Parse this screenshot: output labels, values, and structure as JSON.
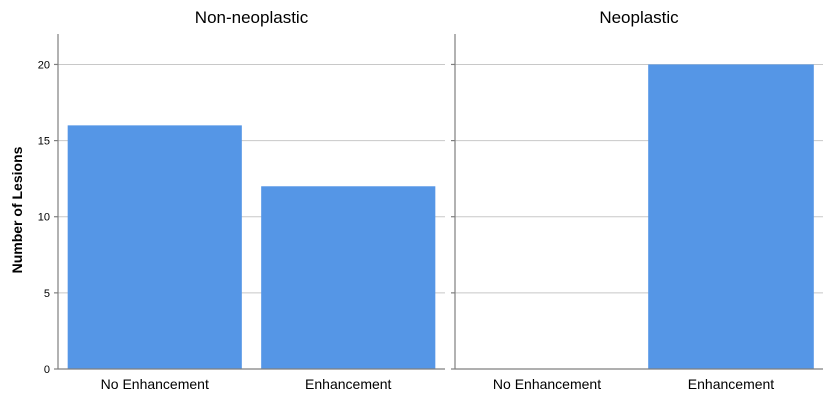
{
  "chart_data": {
    "type": "bar",
    "ylabel": "Number of Lesions",
    "ylim": [
      0,
      22
    ],
    "yticks": [
      0,
      5,
      10,
      15,
      20
    ],
    "grid": true,
    "bar_color": "#5596e6",
    "panels": [
      {
        "title": "Non-neoplastic",
        "categories": [
          "No Enhancement",
          "Enhancement"
        ],
        "values": [
          16,
          12
        ]
      },
      {
        "title": "Neoplastic",
        "categories": [
          "No Enhancement",
          "Enhancement"
        ],
        "values": [
          0,
          20
        ]
      }
    ]
  }
}
